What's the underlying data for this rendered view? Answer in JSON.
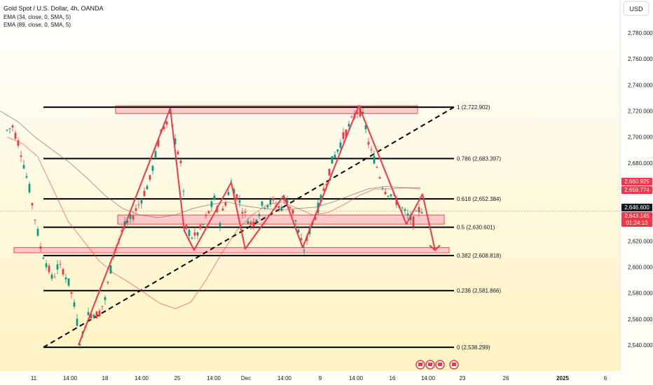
{
  "header": {
    "symbol_line": "Gold Spot / U.S. Dollar, 4h, OANDA",
    "indicators": [
      "EMA (34, close, 0, SMA, 5)",
      "EMA (89, close, 0, SMA, 5)"
    ],
    "currency": "USD"
  },
  "chart_data": {
    "type": "line",
    "title": "Gold Spot / U.S. Dollar, 4h, OANDA",
    "y_axis": {
      "ticks": [
        "2,540.000",
        "2,560.000",
        "2,580.000",
        "2,600.000",
        "2,620.000",
        "2,640.000",
        "2,660.000",
        "2,680.000",
        "2,700.000",
        "2,720.000",
        "2,740.000",
        "2,760.000",
        "2,780.000"
      ],
      "ylim": [
        2530,
        2800
      ]
    },
    "x_axis": {
      "ticks": [
        "11",
        "14:00",
        "18",
        "14:00",
        "25",
        "14:00",
        "Dec",
        "14:00",
        "9",
        "14:00",
        "16",
        "14:00",
        "23",
        "26",
        "2025",
        "6"
      ]
    },
    "fib_levels": [
      {
        "label": "1 (2,722.902)",
        "value": 2722.902
      },
      {
        "label": "0.786 (2,683.397)",
        "value": 2683.397
      },
      {
        "label": "0.618 (2,652.384)",
        "value": 2652.384
      },
      {
        "label": "0.5 (2,630.601)",
        "value": 2630.601
      },
      {
        "label": "0.382 (2,608.818)",
        "value": 2608.818
      },
      {
        "label": "0.236 (2,581.866)",
        "value": 2581.866
      },
      {
        "label": "0 (2,538.299)",
        "value": 2538.299
      }
    ],
    "zones": [
      {
        "from": 2718,
        "to": 2724
      },
      {
        "from": 2633,
        "to": 2640
      },
      {
        "from": 2611,
        "to": 2615
      }
    ],
    "price_path": [
      {
        "t": "x0",
        "y": 2705
      },
      {
        "t": "x1",
        "y": 2708
      },
      {
        "t": "x2",
        "y": 2693
      },
      {
        "t": "x3",
        "y": 2660
      },
      {
        "t": "x4",
        "y": 2615
      },
      {
        "t": "x5",
        "y": 2605
      },
      {
        "t": "x6",
        "y": 2590
      },
      {
        "t": "x7",
        "y": 2600
      },
      {
        "t": "x8",
        "y": 2598
      },
      {
        "t": "x9",
        "y": 2585
      },
      {
        "t": "x10",
        "y": 2565
      },
      {
        "t": "x11",
        "y": 2540
      },
      {
        "t": "x12",
        "y": 2562
      },
      {
        "t": "x13",
        "y": 2565
      },
      {
        "t": "x14",
        "y": 2563
      },
      {
        "t": "x15",
        "y": 2575
      },
      {
        "t": "x16",
        "y": 2610
      },
      {
        "t": "x17",
        "y": 2630
      },
      {
        "t": "x18",
        "y": 2638
      },
      {
        "t": "x19",
        "y": 2650
      },
      {
        "t": "x20",
        "y": 2667
      },
      {
        "t": "x21",
        "y": 2700
      },
      {
        "t": "x22",
        "y": 2720
      },
      {
        "t": "x23",
        "y": 2697
      },
      {
        "t": "x24",
        "y": 2680
      },
      {
        "t": "x25",
        "y": 2630
      },
      {
        "t": "x26",
        "y": 2622
      },
      {
        "t": "x27",
        "y": 2630
      },
      {
        "t": "x28",
        "y": 2652
      },
      {
        "t": "x29",
        "y": 2635
      },
      {
        "t": "x30",
        "y": 2665
      },
      {
        "t": "x31",
        "y": 2655
      },
      {
        "t": "x32",
        "y": 2640
      },
      {
        "t": "x33",
        "y": 2632
      },
      {
        "t": "x34",
        "y": 2648
      },
      {
        "t": "x35",
        "y": 2650
      },
      {
        "t": "x36",
        "y": 2645
      },
      {
        "t": "x37",
        "y": 2652
      },
      {
        "t": "x38",
        "y": 2640
      },
      {
        "t": "x39",
        "y": 2612
      },
      {
        "t": "x40",
        "y": 2628
      },
      {
        "t": "x41",
        "y": 2650
      },
      {
        "t": "x42",
        "y": 2680
      },
      {
        "t": "x43",
        "y": 2700
      },
      {
        "t": "x44",
        "y": 2722
      },
      {
        "t": "x45",
        "y": 2713
      },
      {
        "t": "x46",
        "y": 2690
      },
      {
        "t": "x47",
        "y": 2682
      },
      {
        "t": "x48",
        "y": 2660
      },
      {
        "t": "x49",
        "y": 2655
      },
      {
        "t": "x50",
        "y": 2640
      },
      {
        "t": "x51",
        "y": 2635
      },
      {
        "t": "x52",
        "y": 2646
      },
      {
        "t": "x53",
        "y": 2643
      }
    ],
    "ema34": [
      2700,
      2695,
      2685,
      2660,
      2635,
      2620,
      2605,
      2595,
      2588,
      2580,
      2572,
      2568,
      2573,
      2590,
      2610,
      2628,
      2640,
      2648,
      2650,
      2645,
      2640,
      2642,
      2648,
      2655,
      2660,
      2660,
      2661,
      2660
    ],
    "ema89": [
      2720,
      2712,
      2700,
      2690,
      2680,
      2668,
      2655,
      2645,
      2640,
      2638,
      2640,
      2645,
      2648,
      2650,
      2647,
      2645,
      2644,
      2645,
      2646,
      2650,
      2655,
      2660,
      2662,
      2661,
      2661
    ],
    "price_labels": [
      {
        "text": "2,660.925",
        "color": "#f23645"
      },
      {
        "text": "2,659.774",
        "color": "#f23645"
      },
      {
        "text": "2,646.600",
        "color": "#131722"
      },
      {
        "text": "2,643.145",
        "color": "#f23645"
      },
      {
        "text": "01:24:13",
        "color": "#f23645"
      }
    ]
  },
  "colors": {
    "bull": "#089981",
    "bear": "#f23645",
    "zone_fill": "#fbc6c6",
    "zone_stroke": "#f23645",
    "fib_line": "#000000",
    "bg_top": "#ffffff",
    "bg_bottom": "#fff3c0"
  },
  "icons": [
    "zigzag-events-icon",
    "flag-event-icon",
    "flag-event-icon",
    "flag-event-icon"
  ]
}
